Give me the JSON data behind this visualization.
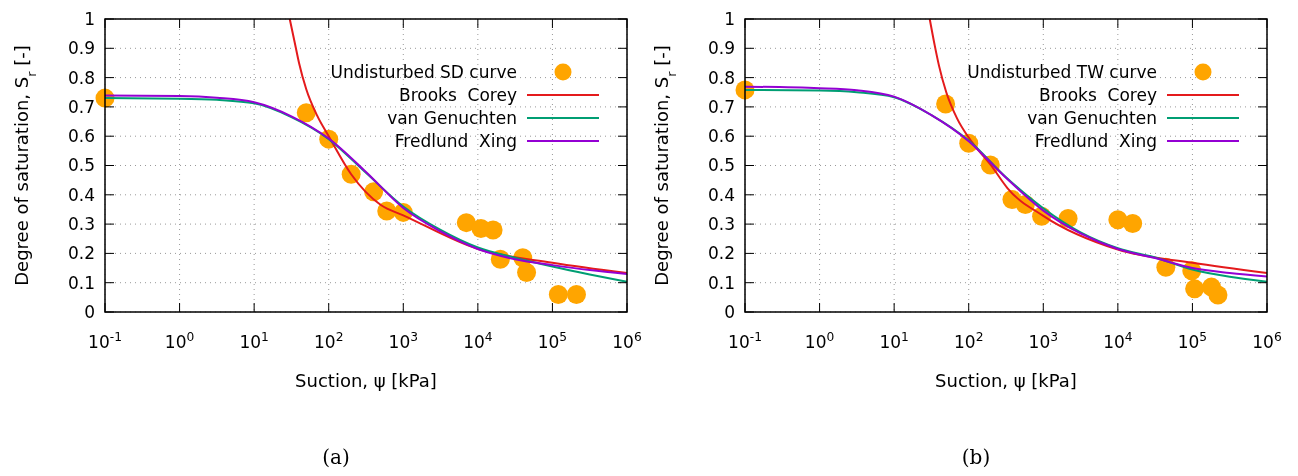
{
  "chart_data": [
    {
      "type": "line",
      "xlabel": "Suction, ψ [kPa]",
      "ylabel": "Degree of saturation, S$_{r}$ [-]",
      "annotations": [
        "(a)"
      ],
      "log": "x",
      "grid": true,
      "legend": "top right",
      "xlim": [
        0.1,
        1000000
      ],
      "ylim": [
        0,
        1
      ],
      "xticks": [
        {
          "value": 0.1,
          "label": "10$^{-1}$"
        },
        {
          "value": 1,
          "label": "10$^{0}$"
        },
        {
          "value": 10,
          "label": "10$^{1}$"
        },
        {
          "value": 100,
          "label": "10$^{2}$"
        },
        {
          "value": 1000,
          "label": "10$^{3}$"
        },
        {
          "value": 10000,
          "label": "10$^{4}$"
        },
        {
          "value": 100000,
          "label": "10$^{5}$"
        },
        {
          "value": 1000000,
          "label": "10$^{6}$"
        }
      ],
      "yticks": [
        0,
        0.1,
        0.2,
        0.3,
        0.4,
        0.5,
        0.6,
        0.7,
        0.8,
        0.9,
        1
      ],
      "series": [
        {
          "name": "Undisturbed SD curve",
          "type": "scatter",
          "marker": "circle",
          "color": "#ffa500",
          "x": [
            0.1,
            50,
            100,
            200,
            400,
            600,
            1000,
            7000,
            11000,
            16000,
            20000,
            40000,
            45000,
            120000,
            210000
          ],
          "values": [
            0.73,
            0.68,
            0.59,
            0.47,
            0.41,
            0.345,
            0.34,
            0.305,
            0.285,
            0.28,
            0.18,
            0.185,
            0.135,
            0.06,
            0.06
          ]
        },
        {
          "name": "Brooks  Corey",
          "color": "#e41a1c",
          "x": [
            30,
            35,
            40,
            50,
            70,
            100,
            200,
            500,
            1000,
            10000,
            100000,
            1000000
          ],
          "values": [
            1,
            0.92,
            0.85,
            0.76,
            0.67,
            0.6,
            0.47,
            0.365,
            0.33,
            0.215,
            0.168,
            0.133
          ]
        },
        {
          "name": "van Genuchten",
          "color": "#009e73",
          "x": [
            0.1,
            1,
            3.16,
            10,
            31.6,
            100,
            316,
            1000,
            3162,
            10000,
            31620,
            100000,
            316200,
            1000000
          ],
          "values": [
            0.73,
            0.728,
            0.724,
            0.712,
            0.665,
            0.59,
            0.475,
            0.36,
            0.28,
            0.22,
            0.185,
            0.155,
            0.128,
            0.103
          ]
        },
        {
          "name": "Fredlund  Xing",
          "color": "#9400d3",
          "x": [
            0.1,
            1,
            3.16,
            10,
            31.6,
            100,
            316,
            1000,
            3162,
            10000,
            31620,
            100000,
            316200,
            1000000
          ],
          "values": [
            0.739,
            0.737,
            0.731,
            0.716,
            0.668,
            0.592,
            0.478,
            0.355,
            0.275,
            0.215,
            0.18,
            0.16,
            0.143,
            0.13
          ]
        }
      ]
    },
    {
      "type": "line",
      "xlabel": "Suction, ψ [kPa]",
      "ylabel": "Degree of saturation, S$_{r}$ [-]",
      "annotations": [
        "(b)"
      ],
      "log": "x",
      "grid": true,
      "legend": "top right",
      "xlim": [
        0.1,
        1000000
      ],
      "ylim": [
        0,
        1
      ],
      "xticks": [
        {
          "value": 0.1,
          "label": "10$^{-1}$"
        },
        {
          "value": 1,
          "label": "10$^{0}$"
        },
        {
          "value": 10,
          "label": "10$^{1}$"
        },
        {
          "value": 100,
          "label": "10$^{2}$"
        },
        {
          "value": 1000,
          "label": "10$^{3}$"
        },
        {
          "value": 10000,
          "label": "10$^{4}$"
        },
        {
          "value": 100000,
          "label": "10$^{5}$"
        },
        {
          "value": 1000000,
          "label": "10$^{6}$"
        }
      ],
      "yticks": [
        0,
        0.1,
        0.2,
        0.3,
        0.4,
        0.5,
        0.6,
        0.7,
        0.8,
        0.9,
        1
      ],
      "series": [
        {
          "name": "Undisturbed TW curve",
          "type": "scatter",
          "marker": "circle",
          "color": "#ffa500",
          "x": [
            0.1,
            49,
            100,
            195,
            380,
            575,
            950,
            2150,
            10000,
            15800,
            44000,
            98000,
            107000,
            180000,
            220000
          ],
          "values": [
            0.758,
            0.71,
            0.576,
            0.502,
            0.384,
            0.367,
            0.327,
            0.319,
            0.315,
            0.302,
            0.153,
            0.141,
            0.079,
            0.085,
            0.058
          ]
        },
        {
          "name": "Brooks  Corey",
          "color": "#e41a1c",
          "x": [
            30,
            35,
            40,
            50,
            70,
            100,
            200,
            330,
            1000,
            10000,
            100000,
            1000000
          ],
          "values": [
            1,
            0.91,
            0.84,
            0.75,
            0.66,
            0.595,
            0.5,
            0.423,
            0.328,
            0.213,
            0.168,
            0.133
          ]
        },
        {
          "name": "van Genuchten",
          "color": "#009e73",
          "x": [
            0.1,
            1,
            3.16,
            10,
            31.6,
            100,
            316,
            1000,
            3162,
            10000,
            31620,
            100000,
            316200,
            1000000
          ],
          "values": [
            0.758,
            0.756,
            0.75,
            0.733,
            0.672,
            0.585,
            0.46,
            0.354,
            0.272,
            0.218,
            0.186,
            0.145,
            0.12,
            0.103
          ]
        },
        {
          "name": "Fredlund  Xing",
          "color": "#9400d3",
          "x": [
            0.1,
            1,
            3.16,
            10,
            31.6,
            100,
            316,
            1000,
            3162,
            10000,
            31620,
            100000,
            316200,
            1000000
          ],
          "values": [
            0.769,
            0.764,
            0.757,
            0.735,
            0.672,
            0.583,
            0.458,
            0.346,
            0.268,
            0.215,
            0.184,
            0.15,
            0.133,
            0.121
          ]
        }
      ]
    }
  ]
}
